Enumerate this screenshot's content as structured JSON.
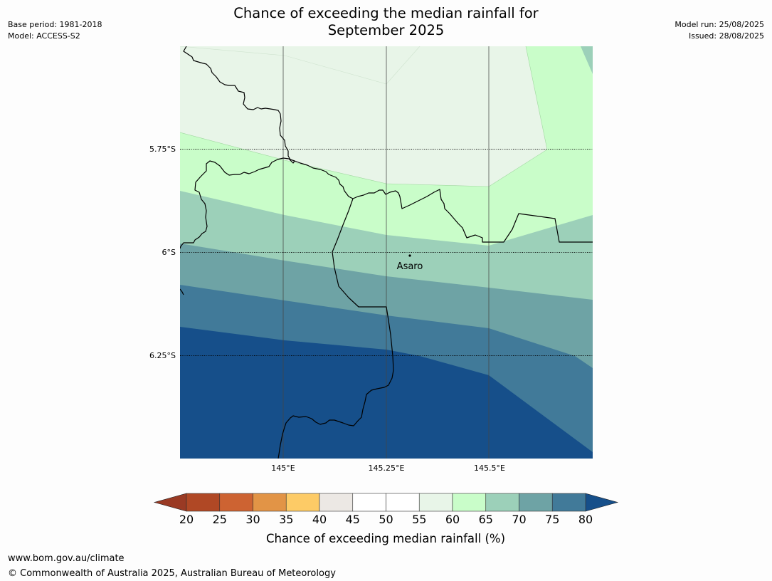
{
  "title": {
    "line1": "Chance of exceeding the median rainfall for",
    "line2": "September 2025"
  },
  "meta_left": {
    "base_period": "Base period: 1981-2018",
    "model": "Model: ACCESS-S2"
  },
  "meta_right": {
    "model_run": "Model run: 25/08/2025",
    "issued": "Issued: 28/08/2025"
  },
  "map": {
    "latitude_labels": [
      "5.75°S",
      "6°S",
      "6.25°S"
    ],
    "longitude_labels": [
      "145°E",
      "145.25°E",
      "145.5°E"
    ],
    "place": {
      "name": "Asaro"
    }
  },
  "colorbar": {
    "ticks": [
      "20",
      "25",
      "30",
      "35",
      "40",
      "45",
      "50",
      "55",
      "60",
      "65",
      "70",
      "75",
      "80"
    ],
    "colors": [
      "#b04825",
      "#cd6332",
      "#e29446",
      "#fdcb66",
      "#ece8e4",
      "#ffffff",
      "#ffffff",
      "#e8f5e8",
      "#c9fdc9",
      "#9cd0b9",
      "#6ea3a5",
      "#417a99"
    ],
    "under_color": "#9a3a24",
    "over_color": "#164f8a",
    "label": "Chance of exceeding median rainfall (%)"
  },
  "footer": {
    "website": "www.bom.gov.au/climate",
    "copyright": "© Commonwealth of Australia 2025, Australian Bureau of Meteorology"
  }
}
